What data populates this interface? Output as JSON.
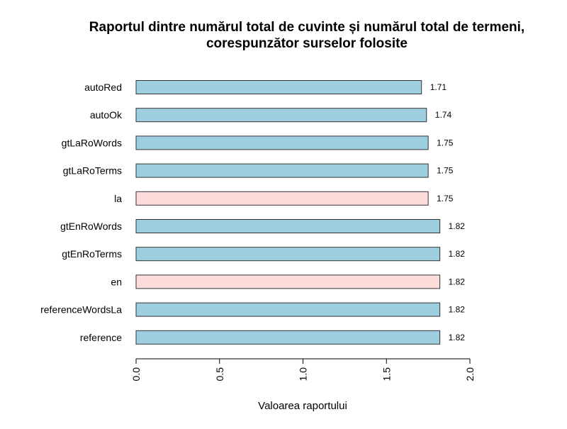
{
  "chart_data": {
    "type": "bar",
    "orientation": "horizontal",
    "title_lines": [
      "Raportul dintre numărul total de cuvinte și numărul total de termeni,",
      "corespunzător surselor folosite"
    ],
    "xlabel": "Valoarea raportului",
    "ylabel": "",
    "xlim": [
      0,
      2
    ],
    "x_ticks": [
      "0.0",
      "0.5",
      "1.0",
      "1.5",
      "2.0"
    ],
    "grid": false,
    "categories": [
      "autoRed",
      "autoOk",
      "gtLaRoWords",
      "gtLaRoTerms",
      "la",
      "gtEnRoWords",
      "gtEnRoTerms",
      "en",
      "referenceWordsLa",
      "reference"
    ],
    "values": [
      1.71,
      1.74,
      1.75,
      1.75,
      1.75,
      1.82,
      1.82,
      1.82,
      1.82,
      1.82
    ],
    "value_labels": [
      "1.71",
      "1.74",
      "1.75",
      "1.75",
      "1.75",
      "1.82",
      "1.82",
      "1.82",
      "1.82",
      "1.82"
    ],
    "bar_colors": [
      "#9ecfe0",
      "#9ecfe0",
      "#9ecfe0",
      "#9ecfe0",
      "#fddcdc",
      "#9ecfe0",
      "#9ecfe0",
      "#fddcdc",
      "#9ecfe0",
      "#9ecfe0"
    ],
    "bar_outline_color": "#333333"
  }
}
